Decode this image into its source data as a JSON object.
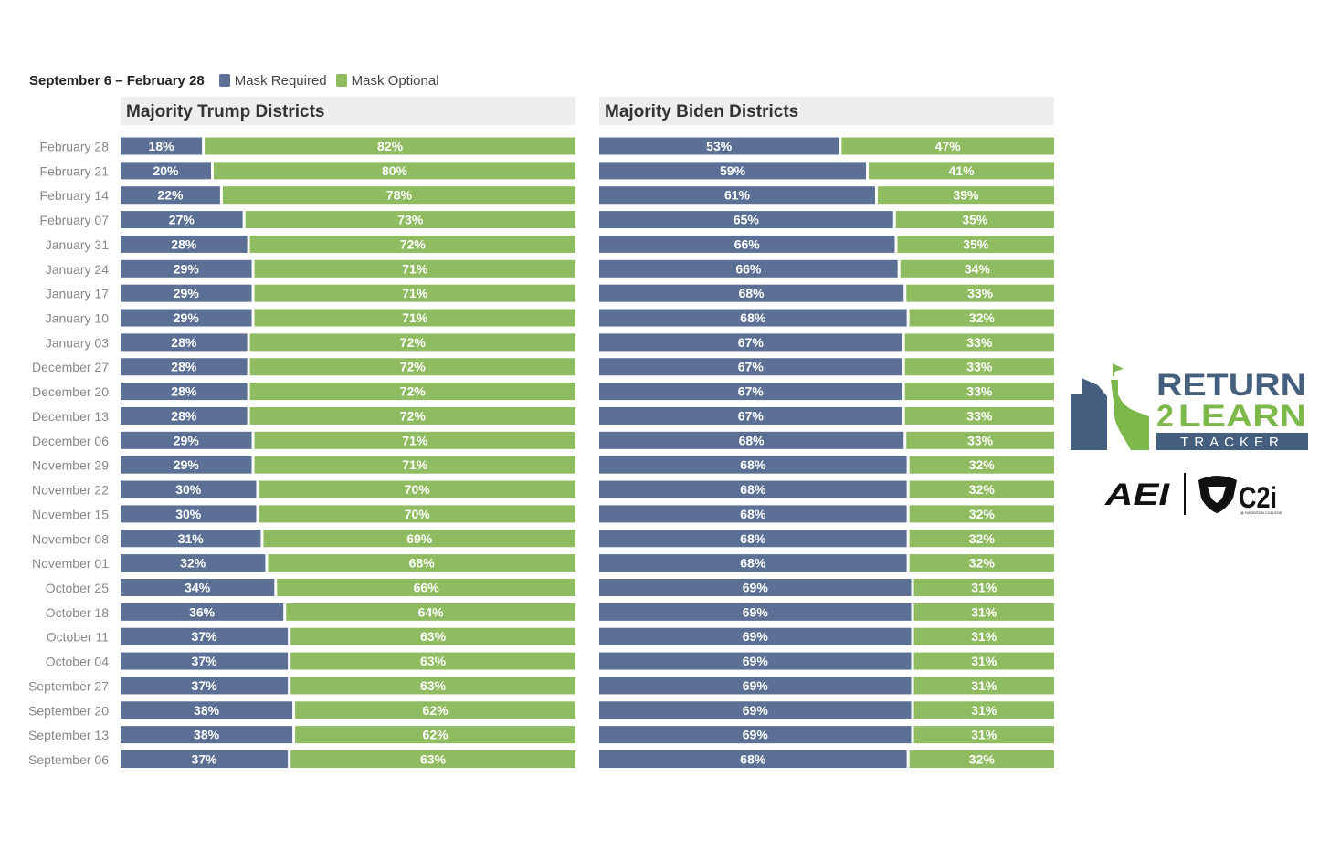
{
  "legend": {
    "date_range": "September 6 – February 28",
    "required_label": "Mask Required",
    "optional_label": "Mask Optional"
  },
  "colors": {
    "required": "#5b7094",
    "optional": "#8fbc61",
    "header_bg": "#eeeeee",
    "date_text": "#888888",
    "brand_blue": "#45607e",
    "brand_green": "#7db84a"
  },
  "chart_data": [
    {
      "type": "bar",
      "orientation": "horizontal-stacked-100",
      "title": "Majority Trump Districts",
      "categories": [
        "February 28",
        "February 21",
        "February 14",
        "February 07",
        "January 31",
        "January 24",
        "January 17",
        "January 10",
        "January 03",
        "December 27",
        "December 20",
        "December 13",
        "December 06",
        "November 29",
        "November 22",
        "November 15",
        "November 08",
        "November 01",
        "October 25",
        "October 18",
        "October 11",
        "October 04",
        "September 27",
        "September 20",
        "September 13",
        "September 06"
      ],
      "series": [
        {
          "name": "Mask Required",
          "values": [
            18,
            20,
            22,
            27,
            28,
            29,
            29,
            29,
            28,
            28,
            28,
            28,
            29,
            29,
            30,
            30,
            31,
            32,
            34,
            36,
            37,
            37,
            37,
            38,
            38,
            37
          ]
        },
        {
          "name": "Mask Optional",
          "values": [
            82,
            80,
            78,
            73,
            72,
            71,
            71,
            71,
            72,
            72,
            72,
            72,
            71,
            71,
            70,
            70,
            69,
            68,
            66,
            64,
            63,
            63,
            63,
            62,
            62,
            63
          ]
        }
      ],
      "xlim": [
        0,
        100
      ],
      "legend": "top-left"
    },
    {
      "type": "bar",
      "orientation": "horizontal-stacked-100",
      "title": "Majority Biden Districts",
      "categories": [
        "February 28",
        "February 21",
        "February 14",
        "February 07",
        "January 31",
        "January 24",
        "January 17",
        "January 10",
        "January 03",
        "December 27",
        "December 20",
        "December 13",
        "December 06",
        "November 29",
        "November 22",
        "November 15",
        "November 08",
        "November 01",
        "October 25",
        "October 18",
        "October 11",
        "October 04",
        "September 27",
        "September 20",
        "September 13",
        "September 06"
      ],
      "series": [
        {
          "name": "Mask Required",
          "values": [
            53,
            59,
            61,
            65,
            66,
            66,
            68,
            68,
            67,
            67,
            67,
            67,
            68,
            68,
            68,
            68,
            68,
            68,
            69,
            69,
            69,
            69,
            69,
            69,
            69,
            68
          ]
        },
        {
          "name": "Mask Optional",
          "values": [
            47,
            41,
            39,
            35,
            35,
            34,
            33,
            32,
            33,
            33,
            33,
            33,
            33,
            32,
            32,
            32,
            32,
            32,
            31,
            31,
            31,
            31,
            31,
            31,
            31,
            32
          ]
        }
      ],
      "xlim": [
        0,
        100
      ],
      "legend": "top-left"
    }
  ],
  "logo": {
    "line1": "RETURN",
    "line2_number": "2",
    "line2_word": "LEARN",
    "line3": "TRACKER",
    "partner1": "AEI",
    "partner2": "C2i",
    "partner2_sub": "@ DAVIDSON COLLEGE"
  }
}
